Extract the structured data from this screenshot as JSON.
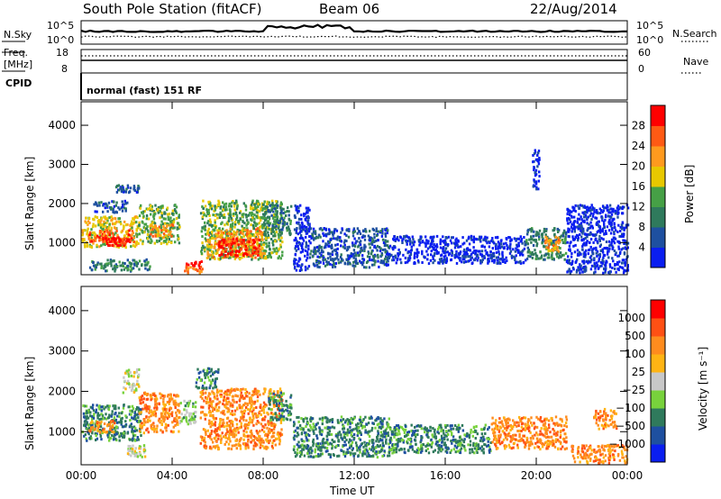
{
  "header": {
    "station": "South Pole Station (fitACF)",
    "beam": "Beam 06",
    "date": "22/Aug/2014"
  },
  "top_panels": {
    "nsky_label": "N.Sky",
    "nsearch_label": "N.Search",
    "nsky_ticks": [
      "10^5",
      "10^0"
    ],
    "nsearch_ticks": [
      "10^5",
      "10^0"
    ],
    "freq_label_line1": "Freq.",
    "freq_label_line2": "[MHz]",
    "freq_ticks": [
      "18",
      "8"
    ],
    "nave_label": "Nave",
    "nave_ticks": [
      "60",
      "0"
    ],
    "cpid_label": "CPID",
    "cpid_text": "normal (fast) 151 RF"
  },
  "chart_data": [
    {
      "type": "heatmap",
      "panel": "power",
      "ylabel": "Slant Range [km]",
      "xlabel": "",
      "ylim": [
        180,
        4600
      ],
      "yticks": [
        "1000",
        "2000",
        "3000",
        "4000"
      ],
      "ytick_values": [
        1000,
        2000,
        3000,
        4000
      ],
      "xlim": [
        0,
        24
      ],
      "colorbar": {
        "label": "Power [dB]",
        "ticks": [
          "4",
          "8",
          "12",
          "16",
          "20",
          "24",
          "28"
        ],
        "colors": [
          "#0a1ef0",
          "#1e50a0",
          "#2f7a5c",
          "#46a046",
          "#e8c800",
          "#ff9a1e",
          "#ff5a14",
          "#ff0000"
        ]
      },
      "regions": [
        {
          "t0": 0.0,
          "t1": 2.5,
          "r0": 900,
          "r1": 1700,
          "level": 4
        },
        {
          "t0": 0.3,
          "t1": 2.3,
          "r0": 1050,
          "r1": 1350,
          "level": 6
        },
        {
          "t0": 1.0,
          "t1": 2.0,
          "r0": 950,
          "r1": 1150,
          "level": 7
        },
        {
          "t0": 2.5,
          "t1": 4.3,
          "r0": 1000,
          "r1": 2000,
          "level": 3
        },
        {
          "t0": 3.0,
          "t1": 4.0,
          "r0": 1150,
          "r1": 1500,
          "level": 5
        },
        {
          "t0": 0.5,
          "t1": 2.0,
          "r0": 1800,
          "r1": 2100,
          "level": 1
        },
        {
          "t0": 1.5,
          "t1": 2.5,
          "r0": 2300,
          "r1": 2500,
          "level": 1
        },
        {
          "t0": 0.3,
          "t1": 3.0,
          "r0": 300,
          "r1": 600,
          "level": 2
        },
        {
          "t0": 4.5,
          "t1": 5.3,
          "r0": 250,
          "r1": 550,
          "level": 6
        },
        {
          "t0": 5.2,
          "t1": 8.8,
          "r0": 600,
          "r1": 2100,
          "level": 3
        },
        {
          "t0": 5.5,
          "t1": 8.0,
          "r0": 650,
          "r1": 1400,
          "level": 5
        },
        {
          "t0": 6.0,
          "t1": 7.8,
          "r0": 700,
          "r1": 1150,
          "level": 7
        },
        {
          "t0": 8.0,
          "t1": 9.2,
          "r0": 1200,
          "r1": 2000,
          "level": 2
        },
        {
          "t0": 9.3,
          "t1": 10.0,
          "r0": 300,
          "r1": 2000,
          "level": 0
        },
        {
          "t0": 10.0,
          "t1": 13.5,
          "r0": 400,
          "r1": 1400,
          "level": 1
        },
        {
          "t0": 13.5,
          "t1": 19.5,
          "r0": 500,
          "r1": 1200,
          "level": 0
        },
        {
          "t0": 19.5,
          "t1": 21.3,
          "r0": 600,
          "r1": 1400,
          "level": 2
        },
        {
          "t0": 20.3,
          "t1": 21.0,
          "r0": 800,
          "r1": 1200,
          "level": 5
        },
        {
          "t0": 21.3,
          "t1": 24.0,
          "r0": 250,
          "r1": 2000,
          "level": 0
        },
        {
          "t0": 19.8,
          "t1": 20.1,
          "r0": 2400,
          "r1": 3400,
          "level": 0
        }
      ]
    },
    {
      "type": "heatmap",
      "panel": "velocity",
      "ylabel": "Slant Range [km]",
      "xlabel": "Time UT",
      "ylim": [
        180,
        4600
      ],
      "yticks": [
        "1000",
        "2000",
        "3000",
        "4000"
      ],
      "ytick_values": [
        1000,
        2000,
        3000,
        4000
      ],
      "xlim": [
        0,
        24
      ],
      "xticks": [
        "00:00",
        "04:00",
        "08:00",
        "12:00",
        "16:00",
        "20:00",
        "00:00"
      ],
      "xtick_values": [
        0,
        4,
        8,
        12,
        16,
        20,
        24
      ],
      "colorbar": {
        "label": "Velocity [m s⁻¹]",
        "ticks": [
          "1000",
          "500",
          "100",
          "25",
          "−25",
          "−100",
          "−500",
          "−1000"
        ],
        "colors": [
          "#0a1ef0",
          "#1e50a0",
          "#2f7a5c",
          "#78d23c",
          "#c8c8c8",
          "#ffb414",
          "#ff8c1e",
          "#ff5014",
          "#ff0000"
        ]
      },
      "regions": [
        {
          "t0": 0.0,
          "t1": 2.6,
          "r0": 800,
          "r1": 1700,
          "level": 2
        },
        {
          "t0": 0.3,
          "t1": 1.5,
          "r0": 1000,
          "r1": 1300,
          "level": 6
        },
        {
          "t0": 2.5,
          "t1": 4.3,
          "r0": 1000,
          "r1": 2000,
          "level": 6
        },
        {
          "t0": 1.8,
          "t1": 2.5,
          "r0": 2000,
          "r1": 2600,
          "level": 4
        },
        {
          "t0": 2.0,
          "t1": 2.8,
          "r0": 400,
          "r1": 700,
          "level": 4
        },
        {
          "t0": 4.3,
          "t1": 5.0,
          "r0": 1200,
          "r1": 1800,
          "level": 3
        },
        {
          "t0": 5.2,
          "t1": 8.8,
          "r0": 600,
          "r1": 2100,
          "level": 6
        },
        {
          "t0": 5.0,
          "t1": 6.0,
          "r0": 2100,
          "r1": 2600,
          "level": 2
        },
        {
          "t0": 8.2,
          "t1": 9.2,
          "r0": 1300,
          "r1": 2000,
          "level": 2
        },
        {
          "t0": 9.3,
          "t1": 13.5,
          "r0": 400,
          "r1": 1400,
          "level": 2
        },
        {
          "t0": 13.5,
          "t1": 18.0,
          "r0": 500,
          "r1": 1200,
          "level": 2
        },
        {
          "t0": 18.0,
          "t1": 21.3,
          "r0": 600,
          "r1": 1400,
          "level": 6
        },
        {
          "t0": 22.5,
          "t1": 23.5,
          "r0": 1100,
          "r1": 1600,
          "level": 6
        },
        {
          "t0": 21.5,
          "t1": 24.0,
          "r0": 250,
          "r1": 700,
          "level": 6
        }
      ]
    }
  ]
}
